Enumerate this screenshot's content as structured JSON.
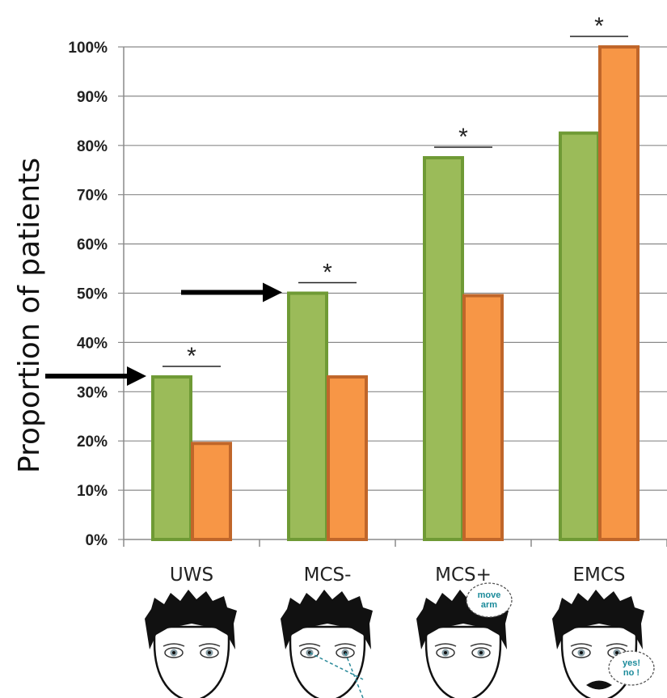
{
  "chart_data": {
    "type": "bar",
    "ylabel": "Proportion of patients",
    "ylim": [
      0,
      100
    ],
    "yticks": [
      "0%",
      "10%",
      "20%",
      "30%",
      "40%",
      "50%",
      "60%",
      "70%",
      "80%",
      "90%",
      "100%"
    ],
    "categories": [
      "UWS",
      "MCS-",
      "MCS+",
      "EMCS"
    ],
    "series": [
      {
        "values": [
          33,
          50,
          77.5,
          82.5
        ],
        "color": "#9bbb59",
        "edge": "#6f9a35"
      },
      {
        "values": [
          19.5,
          33,
          49.5,
          100
        ],
        "color": "#f79646",
        "edge": "#c0662a"
      }
    ],
    "significance_markers": [
      "*",
      "*",
      "*",
      "*"
    ],
    "arrows_at_category": [
      "UWS",
      "MCS-"
    ],
    "grid": "horizontal",
    "face_speech_bubbles": {
      "MCS+": [
        "move",
        "arm"
      ],
      "EMCS": [
        "yes!",
        "no !"
      ]
    }
  }
}
